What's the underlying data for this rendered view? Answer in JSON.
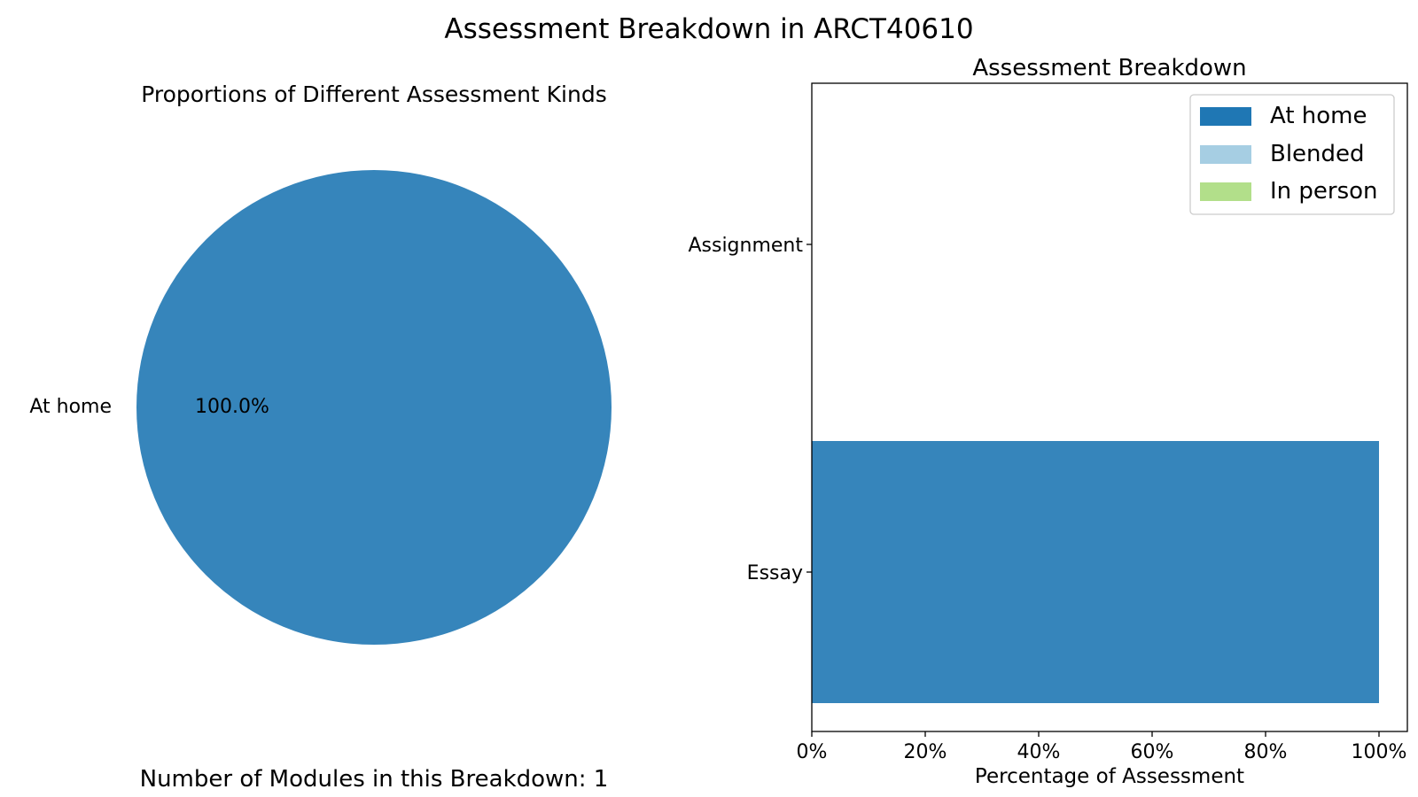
{
  "figure": {
    "title": "Assessment Breakdown in ARCT40610",
    "footer": "Number of Modules in this Breakdown: 1"
  },
  "colors": {
    "at_home": "#3685bb",
    "at_home_legend": "#1f77b4",
    "blended": "#a6cee3",
    "in_person": "#b2df8a"
  },
  "chart_data": [
    {
      "type": "pie",
      "title": "Proportions of Different Assessment Kinds",
      "slices": [
        {
          "label": "At home",
          "value": 100.0,
          "pct_label": "100.0%"
        }
      ]
    },
    {
      "type": "bar",
      "orientation": "horizontal",
      "stacked": true,
      "title": "Assessment Breakdown",
      "xlabel": "Percentage of Assessment",
      "xlim": [
        0,
        100
      ],
      "xticks": [
        "0%",
        "20%",
        "40%",
        "60%",
        "80%",
        "100%"
      ],
      "categories": [
        "Assignment",
        "Essay"
      ],
      "series": [
        {
          "name": "At home",
          "values": [
            0,
            100
          ]
        },
        {
          "name": "Blended",
          "values": [
            0,
            0
          ]
        },
        {
          "name": "In person",
          "values": [
            0,
            0
          ]
        }
      ],
      "legend": "top-right"
    }
  ]
}
